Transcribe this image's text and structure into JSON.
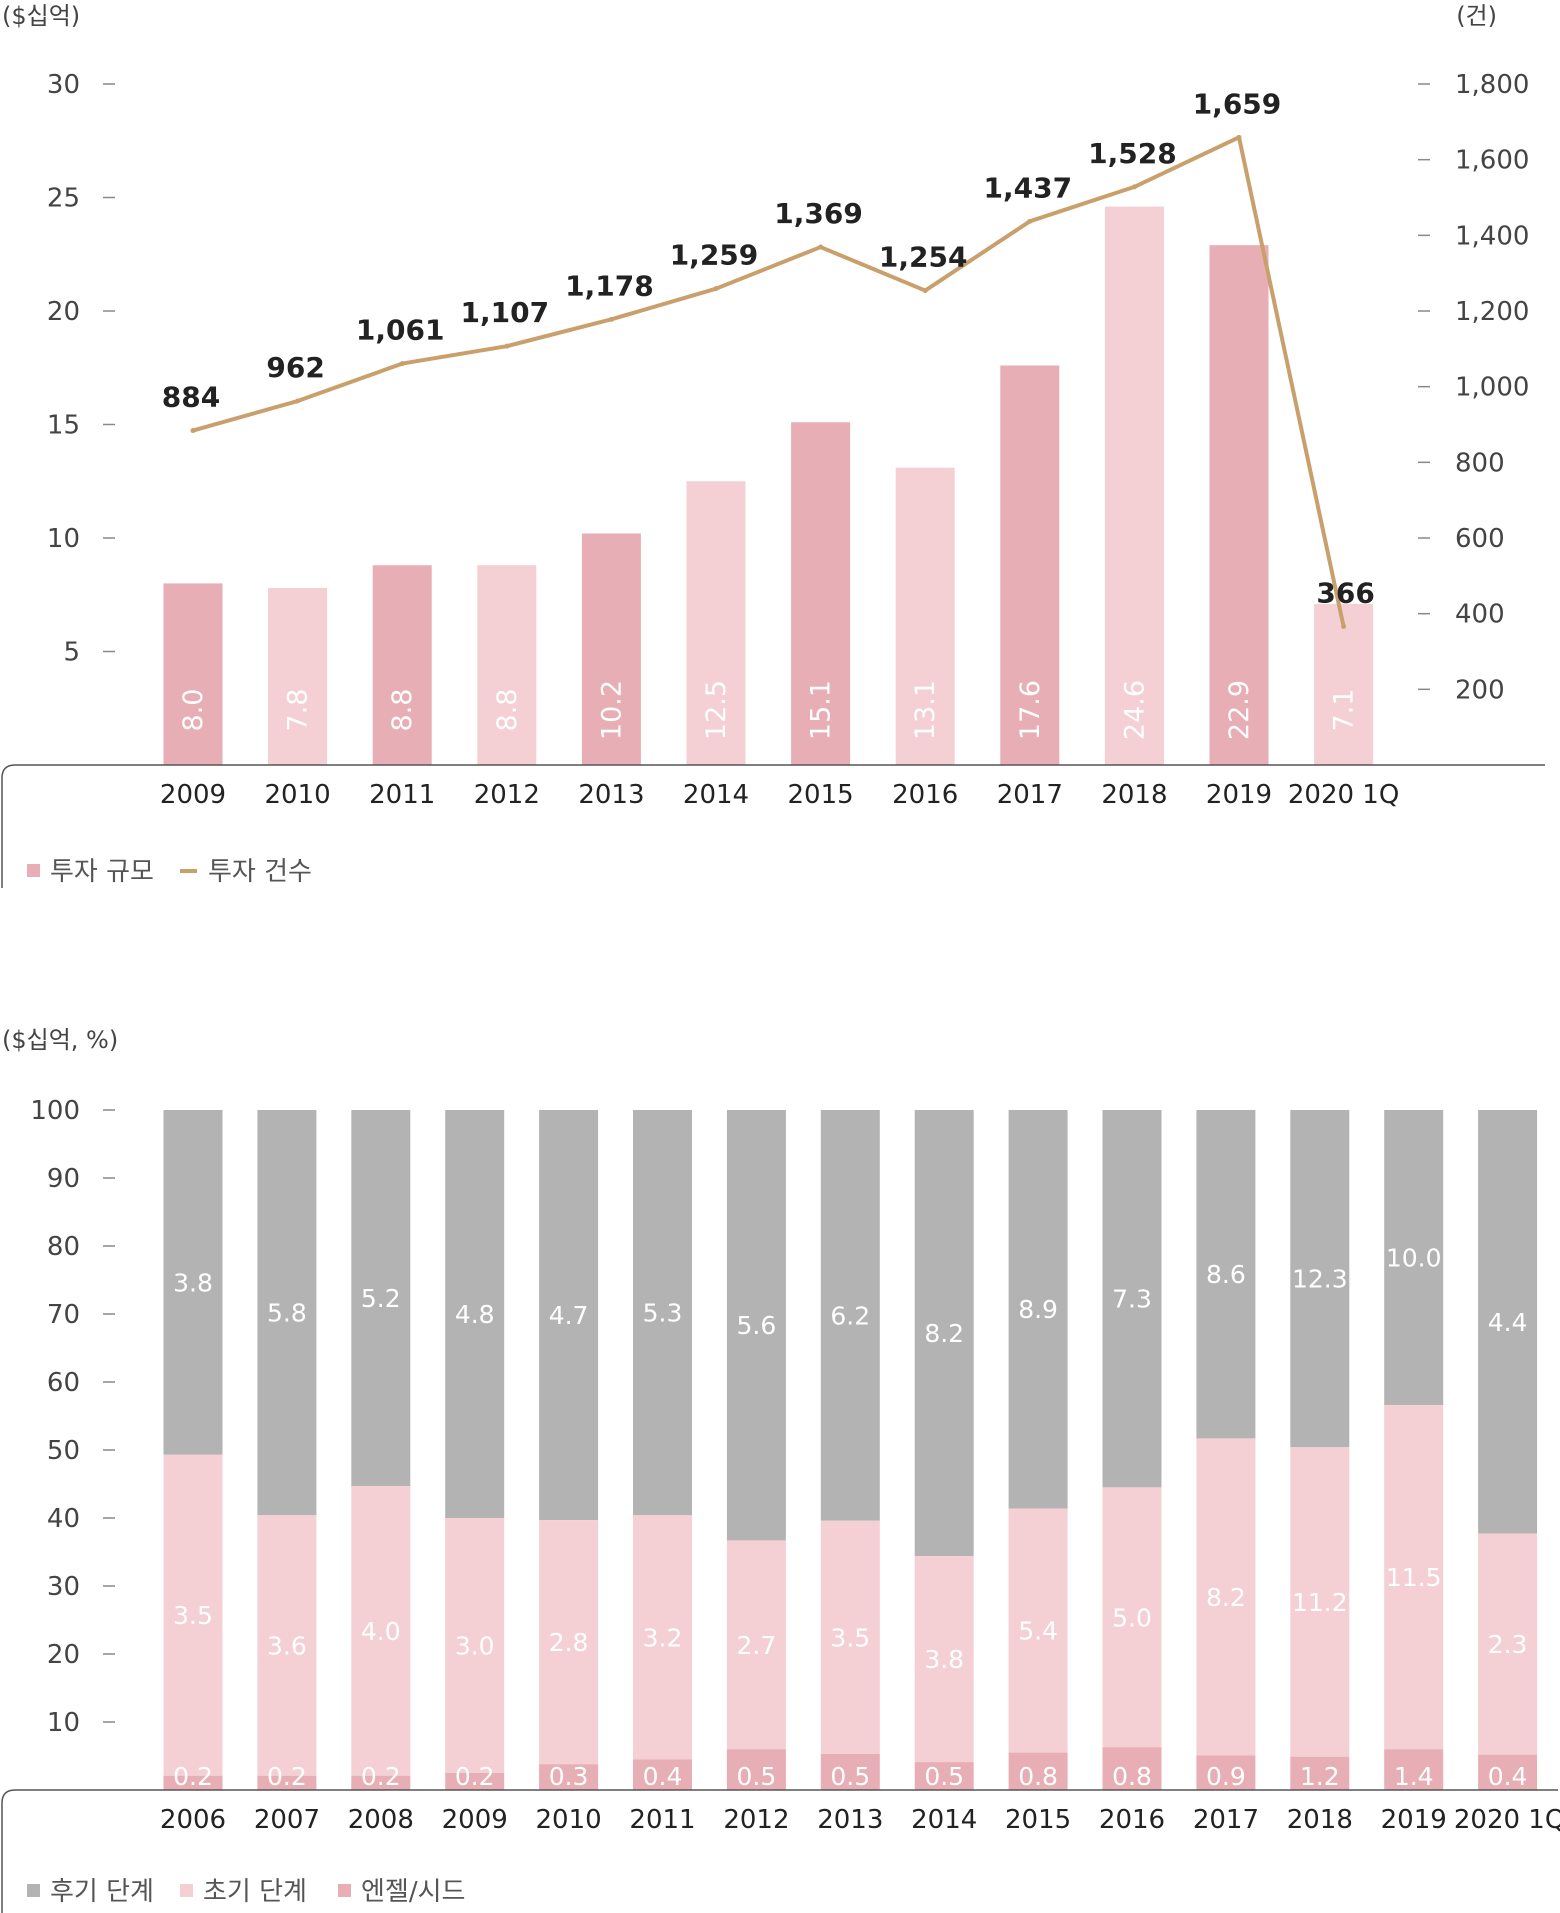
{
  "chart_data": [
    {
      "type": "bar",
      "title": "",
      "categories": [
        "2009",
        "2010",
        "2011",
        "2012",
        "2013",
        "2014",
        "2015",
        "2016",
        "2017",
        "2018",
        "2019",
        "2020 1Q"
      ],
      "y_left_label": "($십억)",
      "y_right_label": "(건)",
      "y_left_ticks": [
        5,
        10,
        15,
        20,
        25,
        30
      ],
      "y_right_ticks": [
        "200",
        "400",
        "600",
        "800",
        "1,000",
        "1,200",
        "1,400",
        "1,600",
        "1,800"
      ],
      "ylim_left": [
        0,
        30
      ],
      "ylim_right": [
        0,
        1800
      ],
      "series": [
        {
          "name": "투자 규모",
          "type": "bar",
          "axis": "left",
          "values": [
            8.0,
            7.8,
            8.8,
            8.8,
            10.2,
            12.5,
            15.1,
            13.1,
            17.6,
            24.6,
            22.9,
            7.1
          ],
          "labels": [
            "8.0",
            "7.8",
            "8.8",
            "8.8",
            "10.2",
            "12.5",
            "15.1",
            "13.1",
            "17.6",
            "24.6",
            "22.9",
            "7.1"
          ],
          "colors": [
            "#e8aeb5",
            "#f4d0d4"
          ]
        },
        {
          "name": "투자 건수",
          "type": "line",
          "axis": "right",
          "values": [
            884,
            962,
            1061,
            1107,
            1178,
            1259,
            1369,
            1254,
            1437,
            1528,
            1659,
            366
          ],
          "labels": [
            "884",
            "962",
            "1,061",
            "1,107",
            "1,178",
            "1,259",
            "1,369",
            "1,254",
            "1,437",
            "1,528",
            "1,659",
            "366"
          ],
          "color": "#c9a06c"
        }
      ],
      "legend_position": "bottom-left",
      "grid": false
    },
    {
      "type": "bar",
      "stacked": true,
      "title": "",
      "categories": [
        "2006",
        "2007",
        "2008",
        "2009",
        "2010",
        "2011",
        "2012",
        "2013",
        "2014",
        "2015",
        "2016",
        "2017",
        "2018",
        "2019",
        "2020 1Q"
      ],
      "ylabel": "($십억, %)",
      "y_ticks": [
        10,
        20,
        30,
        40,
        50,
        60,
        70,
        80,
        90,
        100
      ],
      "ylim": [
        0,
        100
      ],
      "series": [
        {
          "name": "엔젤/시드",
          "color": "#e8aeb5",
          "values": [
            0.2,
            0.2,
            0.2,
            0.2,
            0.3,
            0.4,
            0.5,
            0.5,
            0.5,
            0.8,
            0.8,
            0.9,
            1.2,
            1.4,
            0.4
          ],
          "labels": [
            "0.2",
            "0.2",
            "0.2",
            "0.2",
            "0.3",
            "0.4",
            "0.5",
            "0.5",
            "0.5",
            "0.8",
            "0.8",
            "0.9",
            "1.2",
            "1.4",
            "0.4"
          ],
          "shares_pct": [
            2.1,
            2.1,
            2.1,
            2.5,
            3.8,
            4.5,
            6.0,
            5.3,
            4.1,
            5.5,
            6.3,
            5.1,
            4.9,
            6.0,
            5.2
          ]
        },
        {
          "name": "초기 단계",
          "color": "#f4d0d4",
          "values": [
            3.5,
            3.6,
            4.0,
            3.0,
            2.8,
            3.2,
            2.7,
            3.5,
            3.8,
            5.4,
            5.0,
            8.2,
            11.2,
            11.5,
            2.3
          ],
          "labels": [
            "3.5",
            "3.6",
            "4.0",
            "3.0",
            "2.8",
            "3.2",
            "2.7",
            "3.5",
            "3.8",
            "5.4",
            "5.0",
            "8.2",
            "11.2",
            "11.5",
            "2.3"
          ],
          "shares_pct": [
            47.2,
            38.3,
            42.6,
            37.5,
            35.9,
            35.9,
            30.7,
            34.3,
            30.3,
            35.9,
            38.2,
            46.6,
            45.5,
            50.6,
            32.5
          ]
        },
        {
          "name": "후기 단계",
          "color": "#b3b3b3",
          "values": [
            3.8,
            5.8,
            5.2,
            4.8,
            4.7,
            5.3,
            5.6,
            6.2,
            8.2,
            8.9,
            7.3,
            8.6,
            12.3,
            10.0,
            4.4
          ],
          "labels": [
            "3.8",
            "5.8",
            "5.2",
            "4.8",
            "4.7",
            "5.3",
            "5.6",
            "6.2",
            "8.2",
            "8.9",
            "7.3",
            "8.6",
            "12.3",
            "10.0",
            "4.4"
          ],
          "shares_pct": [
            50.7,
            59.6,
            55.3,
            60.0,
            60.3,
            59.6,
            63.3,
            60.4,
            65.6,
            58.6,
            55.5,
            48.3,
            49.6,
            43.4,
            62.3
          ]
        }
      ],
      "legend_order": [
        "후기 단계",
        "초기 단계",
        "엔젤/시드"
      ],
      "legend_position": "bottom-left",
      "grid": false
    }
  ]
}
